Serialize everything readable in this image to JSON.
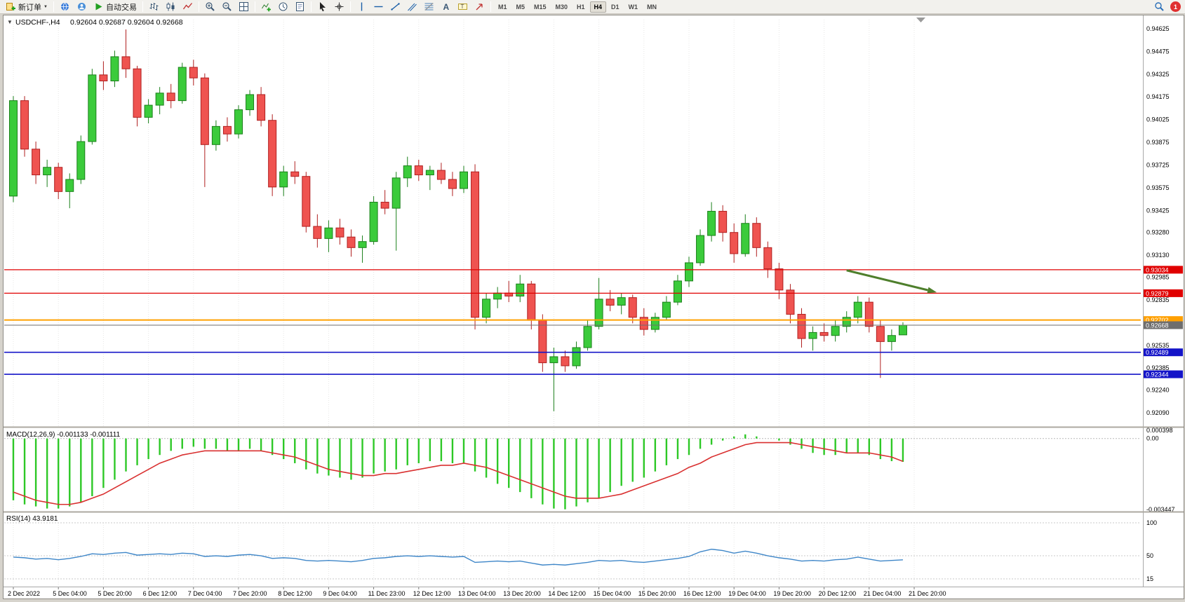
{
  "toolbar": {
    "new_order": "新订单",
    "auto_trading": "自动交易",
    "timeframes": [
      "M1",
      "M5",
      "M15",
      "M30",
      "H1",
      "H4",
      "D1",
      "W1",
      "MN"
    ],
    "active_timeframe": "H4",
    "notification_count": "1",
    "items": [
      {
        "type": "labeled",
        "icon": "new-order-icon",
        "label_key": "new_order",
        "name": "new-order-button",
        "caret": true
      },
      {
        "type": "sep"
      },
      {
        "type": "icon",
        "icon": "mql5-globe-icon",
        "name": "mql5-community-button"
      },
      {
        "type": "icon",
        "icon": "support-icon",
        "name": "support-button"
      },
      {
        "type": "labeled",
        "icon": "autotrade-play-icon",
        "label_key": "auto_trading",
        "name": "auto-trading-button"
      },
      {
        "type": "sep"
      },
      {
        "type": "icon",
        "icon": "bar-chart-icon",
        "name": "bar-chart-button"
      },
      {
        "type": "icon",
        "icon": "candlestick-icon",
        "name": "candlestick-chart-button"
      },
      {
        "type": "icon",
        "icon": "line-chart-icon",
        "name": "line-chart-button"
      },
      {
        "type": "sep"
      },
      {
        "type": "icon",
        "icon": "zoom-in-icon",
        "name": "zoom-in-button"
      },
      {
        "type": "icon",
        "icon": "zoom-out-icon",
        "name": "zoom-out-button"
      },
      {
        "type": "icon",
        "icon": "tile-windows-icon",
        "name": "tile-windows-button"
      },
      {
        "type": "sep"
      },
      {
        "type": "icon",
        "icon": "indicators-icon",
        "name": "indicators-button"
      },
      {
        "type": "icon",
        "icon": "periods-icon",
        "name": "periods-button"
      },
      {
        "type": "icon",
        "icon": "templates-icon",
        "name": "templates-button"
      },
      {
        "type": "sep"
      },
      {
        "type": "icon",
        "icon": "cursor-icon",
        "name": "cursor-button"
      },
      {
        "type": "icon",
        "icon": "crosshair-icon",
        "name": "crosshair-button"
      },
      {
        "type": "sep"
      },
      {
        "type": "icon",
        "icon": "vertical-line-icon",
        "name": "vertical-line-button"
      },
      {
        "type": "icon",
        "icon": "horizontal-line-icon",
        "name": "horizontal-line-button"
      },
      {
        "type": "icon",
        "icon": "trendline-icon",
        "name": "trendline-button"
      },
      {
        "type": "icon",
        "icon": "channel-icon",
        "name": "equidistant-channel-button"
      },
      {
        "type": "icon",
        "icon": "fibonacci-icon",
        "name": "fibonacci-button"
      },
      {
        "type": "icon",
        "icon": "text-icon",
        "name": "text-button"
      },
      {
        "type": "icon",
        "icon": "text-label-icon",
        "name": "text-label-button"
      },
      {
        "type": "icon",
        "icon": "arrows-icon",
        "name": "arrows-button"
      },
      {
        "type": "sep"
      },
      {
        "type": "tf",
        "label": "M1"
      },
      {
        "type": "tf",
        "label": "M5"
      },
      {
        "type": "tf",
        "label": "M15"
      },
      {
        "type": "tf",
        "label": "M30"
      },
      {
        "type": "tf",
        "label": "H1"
      },
      {
        "type": "tf",
        "label": "H4"
      },
      {
        "type": "tf",
        "label": "D1"
      },
      {
        "type": "tf",
        "label": "W1"
      },
      {
        "type": "tf",
        "label": "MN"
      }
    ]
  },
  "chart": {
    "title": "USDCHF-,H4",
    "ohlc": "0.92604 0.92687 0.92604 0.92668",
    "colors": {
      "up": "#3BCB3B",
      "up_border": "#1B801B",
      "down": "#EF5350",
      "down_border": "#B02020",
      "macd_hist": "#2DC826",
      "macd_signal": "#D93030",
      "rsi": "#3E86C8",
      "arrow": "#4E7F2C"
    },
    "price_axis_labels": [
      "0.94625",
      "0.94475",
      "0.94325",
      "0.94175",
      "0.94025",
      "0.93875",
      "0.93725",
      "0.93575",
      "0.93425",
      "0.93280",
      "0.93130",
      "0.92985",
      "0.92835",
      "0.92535",
      "0.92385",
      "0.92240",
      "0.92090"
    ],
    "hlines": [
      {
        "price": 0.93034,
        "label": "0.93034",
        "color": "#E00000",
        "width": 1.2
      },
      {
        "price": 0.92879,
        "label": "0.92879",
        "color": "#E00000",
        "width": 1.2
      },
      {
        "price": 0.92702,
        "label": "0.92702",
        "color": "#FFA000",
        "width": 2
      },
      {
        "price": 0.92489,
        "label": "0.92489",
        "color": "#1414C8",
        "width": 1.6
      },
      {
        "price": 0.92344,
        "label": "0.92344",
        "color": "#1414C8",
        "width": 1.6
      }
    ],
    "current_price": {
      "price": 0.92668,
      "label": "0.92668",
      "color": "#6E6E6E"
    },
    "trend_arrow": {
      "from_index": 74,
      "from_price": 0.9303,
      "to_index": 82,
      "to_price": 0.92885
    },
    "label_step": 4,
    "time_labels": [
      "2 Dec 2022",
      "5 Dec 04:00",
      "5 Dec 20:00",
      "6 Dec 12:00",
      "7 Dec 04:00",
      "7 Dec 20:00",
      "8 Dec 12:00",
      "9 Dec 04:00",
      "11 Dec 23:00",
      "12 Dec 12:00",
      "13 Dec 04:00",
      "13 Dec 20:00",
      "14 Dec 12:00",
      "15 Dec 04:00",
      "15 Dec 20:00",
      "16 Dec 12:00",
      "19 Dec 04:00",
      "19 Dec 20:00",
      "20 Dec 12:00",
      "21 Dec 04:00",
      "21 Dec 20:00"
    ],
    "candles": [
      [
        0.9352,
        0.9418,
        0.9348,
        0.9415
      ],
      [
        0.9415,
        0.9418,
        0.9378,
        0.9383
      ],
      [
        0.9383,
        0.9388,
        0.936,
        0.9366
      ],
      [
        0.9366,
        0.9376,
        0.9358,
        0.9371
      ],
      [
        0.9371,
        0.9374,
        0.935,
        0.9355
      ],
      [
        0.9355,
        0.9367,
        0.9344,
        0.9363
      ],
      [
        0.9363,
        0.9392,
        0.936,
        0.9388
      ],
      [
        0.9388,
        0.9436,
        0.9386,
        0.9432
      ],
      [
        0.9432,
        0.9441,
        0.9422,
        0.9428
      ],
      [
        0.9428,
        0.9448,
        0.9424,
        0.9444
      ],
      [
        0.9444,
        0.9462,
        0.943,
        0.9436
      ],
      [
        0.9436,
        0.9438,
        0.9398,
        0.9404
      ],
      [
        0.9404,
        0.9416,
        0.94,
        0.9412
      ],
      [
        0.9412,
        0.9424,
        0.9406,
        0.942
      ],
      [
        0.942,
        0.9426,
        0.941,
        0.9415
      ],
      [
        0.9415,
        0.944,
        0.9413,
        0.9437
      ],
      [
        0.9437,
        0.9442,
        0.9425,
        0.943
      ],
      [
        0.943,
        0.9433,
        0.9358,
        0.9386
      ],
      [
        0.9386,
        0.9402,
        0.9382,
        0.9398
      ],
      [
        0.9398,
        0.9404,
        0.9388,
        0.9393
      ],
      [
        0.9393,
        0.9412,
        0.939,
        0.9409
      ],
      [
        0.9409,
        0.9422,
        0.9405,
        0.9419
      ],
      [
        0.9419,
        0.9424,
        0.9398,
        0.9402
      ],
      [
        0.9402,
        0.9406,
        0.9352,
        0.9358
      ],
      [
        0.9358,
        0.9372,
        0.9352,
        0.9368
      ],
      [
        0.9368,
        0.9375,
        0.936,
        0.9365
      ],
      [
        0.9365,
        0.9368,
        0.9328,
        0.9332
      ],
      [
        0.9332,
        0.934,
        0.9318,
        0.9324
      ],
      [
        0.9324,
        0.9336,
        0.9315,
        0.9331
      ],
      [
        0.9331,
        0.9337,
        0.932,
        0.9325
      ],
      [
        0.9325,
        0.933,
        0.9312,
        0.9318
      ],
      [
        0.9318,
        0.9326,
        0.9308,
        0.9322
      ],
      [
        0.9322,
        0.9352,
        0.932,
        0.9348
      ],
      [
        0.9348,
        0.9356,
        0.934,
        0.9344
      ],
      [
        0.9344,
        0.9368,
        0.9316,
        0.9364
      ],
      [
        0.9364,
        0.9378,
        0.9358,
        0.9372
      ],
      [
        0.9372,
        0.9376,
        0.9362,
        0.9366
      ],
      [
        0.9366,
        0.9372,
        0.9356,
        0.9369
      ],
      [
        0.9369,
        0.9374,
        0.936,
        0.9363
      ],
      [
        0.9363,
        0.9368,
        0.9352,
        0.9357
      ],
      [
        0.9357,
        0.9372,
        0.9354,
        0.9368
      ],
      [
        0.9368,
        0.9373,
        0.9264,
        0.9272
      ],
      [
        0.9272,
        0.9288,
        0.9268,
        0.9284
      ],
      [
        0.9284,
        0.9292,
        0.9278,
        0.9288
      ],
      [
        0.9288,
        0.9296,
        0.9282,
        0.9286
      ],
      [
        0.9286,
        0.93,
        0.9282,
        0.9294
      ],
      [
        0.9294,
        0.9296,
        0.9264,
        0.927
      ],
      [
        0.927,
        0.9274,
        0.9236,
        0.9242
      ],
      [
        0.9242,
        0.9252,
        0.921,
        0.9246
      ],
      [
        0.9246,
        0.925,
        0.9236,
        0.924
      ],
      [
        0.924,
        0.9256,
        0.9238,
        0.9252
      ],
      [
        0.9252,
        0.927,
        0.925,
        0.9266
      ],
      [
        0.9266,
        0.9298,
        0.9264,
        0.9284
      ],
      [
        0.9284,
        0.929,
        0.9276,
        0.928
      ],
      [
        0.928,
        0.9288,
        0.9274,
        0.9285
      ],
      [
        0.9285,
        0.9287,
        0.9268,
        0.9272
      ],
      [
        0.9272,
        0.9278,
        0.926,
        0.9264
      ],
      [
        0.9264,
        0.9275,
        0.9262,
        0.9272
      ],
      [
        0.9272,
        0.9286,
        0.927,
        0.9282
      ],
      [
        0.9282,
        0.93,
        0.928,
        0.9296
      ],
      [
        0.9296,
        0.9312,
        0.9292,
        0.9308
      ],
      [
        0.9308,
        0.933,
        0.9306,
        0.9326
      ],
      [
        0.9326,
        0.9348,
        0.9322,
        0.9342
      ],
      [
        0.9342,
        0.9346,
        0.9322,
        0.9328
      ],
      [
        0.9328,
        0.9334,
        0.9308,
        0.9314
      ],
      [
        0.9314,
        0.934,
        0.9312,
        0.9334
      ],
      [
        0.9334,
        0.9338,
        0.9312,
        0.9318
      ],
      [
        0.9318,
        0.9322,
        0.9298,
        0.9304
      ],
      [
        0.9304,
        0.9308,
        0.9284,
        0.929
      ],
      [
        0.929,
        0.9294,
        0.9268,
        0.9274
      ],
      [
        0.9274,
        0.9278,
        0.9252,
        0.9258
      ],
      [
        0.9258,
        0.9266,
        0.925,
        0.9262
      ],
      [
        0.9262,
        0.9268,
        0.9256,
        0.926
      ],
      [
        0.926,
        0.927,
        0.9256,
        0.9266
      ],
      [
        0.9266,
        0.9276,
        0.9262,
        0.9272
      ],
      [
        0.9272,
        0.9286,
        0.9268,
        0.9282
      ],
      [
        0.9282,
        0.9285,
        0.9262,
        0.9266
      ],
      [
        0.9266,
        0.927,
        0.9232,
        0.9256
      ],
      [
        0.9256,
        0.9264,
        0.925,
        0.926
      ],
      [
        0.92604,
        0.92687,
        0.92604,
        0.92668
      ]
    ]
  },
  "macd": {
    "label": "MACD(12,26,9) -0.001133 -0.001111",
    "axis_labels": [
      "0.000398",
      "0.00",
      "-0.003447"
    ],
    "max": 0.000398,
    "min": -0.003447,
    "histogram": [
      -0.003,
      -0.0032,
      -0.0033,
      -0.0034,
      -0.0034,
      -0.0033,
      -0.0031,
      -0.0028,
      -0.0024,
      -0.002,
      -0.0016,
      -0.0013,
      -0.001,
      -0.0008,
      -0.0006,
      -0.0005,
      -0.0004,
      -0.0005,
      -0.0005,
      -0.0006,
      -0.0006,
      -0.0005,
      -0.0006,
      -0.0008,
      -0.001,
      -0.0012,
      -0.0015,
      -0.0017,
      -0.0018,
      -0.0019,
      -0.002,
      -0.0019,
      -0.0017,
      -0.0016,
      -0.0015,
      -0.0013,
      -0.0012,
      -0.0011,
      -0.0011,
      -0.0012,
      -0.0012,
      -0.0016,
      -0.0019,
      -0.0022,
      -0.0024,
      -0.0026,
      -0.0029,
      -0.0032,
      -0.0034,
      -0.00344,
      -0.0033,
      -0.0031,
      -0.0029,
      -0.0026,
      -0.0023,
      -0.0021,
      -0.0019,
      -0.0016,
      -0.0013,
      -0.001,
      -0.0008,
      -0.0005,
      -0.0003,
      -0.0001,
      0.0001,
      0.0002,
      0.0001,
      0,
      -0.0001,
      -0.0003,
      -0.0005,
      -0.0007,
      -0.0008,
      -0.0008,
      -0.0007,
      -0.0007,
      -0.0008,
      -0.001,
      -0.0011,
      -0.001133
    ],
    "signal": [
      -0.0026,
      -0.0028,
      -0.003,
      -0.0031,
      -0.0032,
      -0.0032,
      -0.0031,
      -0.0029,
      -0.0027,
      -0.0024,
      -0.0021,
      -0.0018,
      -0.0015,
      -0.0012,
      -0.001,
      -0.0008,
      -0.0007,
      -0.0006,
      -0.0006,
      -0.0006,
      -0.0006,
      -0.0006,
      -0.0006,
      -0.0007,
      -0.0008,
      -0.0009,
      -0.0011,
      -0.0013,
      -0.0015,
      -0.0016,
      -0.0017,
      -0.0018,
      -0.0018,
      -0.0017,
      -0.0017,
      -0.0016,
      -0.0015,
      -0.0014,
      -0.0013,
      -0.0013,
      -0.0012,
      -0.0013,
      -0.0014,
      -0.0016,
      -0.0018,
      -0.002,
      -0.0022,
      -0.0024,
      -0.0026,
      -0.0028,
      -0.0029,
      -0.0029,
      -0.0029,
      -0.0028,
      -0.0027,
      -0.0025,
      -0.0023,
      -0.0021,
      -0.0019,
      -0.0017,
      -0.0014,
      -0.0012,
      -0.0009,
      -0.0007,
      -0.0005,
      -0.0003,
      -0.0002,
      -0.0002,
      -0.0002,
      -0.0002,
      -0.0003,
      -0.0004,
      -0.0005,
      -0.0006,
      -0.0007,
      -0.0007,
      -0.0007,
      -0.0008,
      -0.0009,
      -0.001111
    ]
  },
  "rsi": {
    "label": "RSI(14) 43.9181",
    "axis_labels": [
      "100",
      "50",
      "15"
    ],
    "max": 100,
    "min": 15,
    "values": [
      48,
      47,
      45,
      46,
      44,
      46,
      49,
      53,
      52,
      54,
      55,
      51,
      52,
      53,
      52,
      54,
      53,
      49,
      50,
      49,
      51,
      52,
      50,
      46,
      47,
      46,
      43,
      42,
      43,
      42,
      41,
      43,
      46,
      47,
      49,
      50,
      49,
      50,
      49,
      48,
      49,
      40,
      41,
      42,
      41,
      42,
      39,
      36,
      37,
      36,
      38,
      40,
      43,
      42,
      43,
      41,
      40,
      42,
      44,
      46,
      49,
      56,
      60,
      58,
      54,
      57,
      54,
      50,
      47,
      45,
      42,
      43,
      42,
      44,
      45,
      48,
      45,
      42,
      43,
      43.9
    ]
  }
}
